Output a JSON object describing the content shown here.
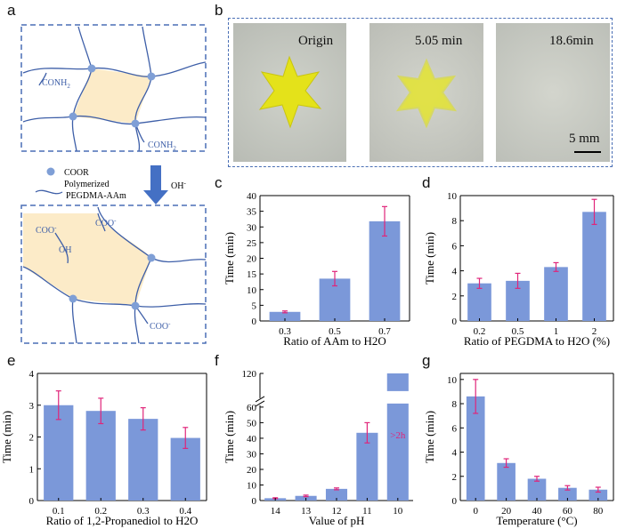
{
  "panels": {
    "a": "a",
    "b": "b",
    "c": "c",
    "d": "d",
    "e": "e",
    "f": "f",
    "g": "g"
  },
  "schematic": {
    "conh2_top": "CONH",
    "conh2_top_sub": "2",
    "conh2_bottom": "CONH",
    "conh2_bottom_sub": "2",
    "legend_coor": "COOR",
    "legend_polymerized": "Polymerized",
    "legend_pegdma": "PEGDMA-AAm",
    "oh_arrow": "OH",
    "oh_arrow_sup": "-",
    "coo_1": "COO",
    "coo_2": "COO",
    "coo_3": "COO",
    "coo_sup": "-",
    "oh_group": "OH",
    "colors": {
      "line": "#3e5fa8",
      "node": "#7f9fd6",
      "fill": "#fcebc8",
      "arrow": "#4470c4"
    }
  },
  "photos": {
    "labels": [
      "Origin",
      "5.05 min",
      "18.6min"
    ],
    "scale_bar": "5 mm"
  },
  "chart_data": [
    {
      "id": "c",
      "type": "bar",
      "categories": [
        "0.3",
        "0.5",
        "0.7"
      ],
      "values": [
        2.9,
        13.5,
        31.8
      ],
      "errors": [
        0.3,
        2.3,
        4.7
      ],
      "xlabel": "Ratio of AAm to H2O",
      "ylabel": "Time (min)",
      "ylim": [
        0,
        40
      ],
      "yticks": [
        "0",
        "5",
        "10",
        "15",
        "20",
        "25",
        "30",
        "35",
        "40"
      ]
    },
    {
      "id": "d",
      "type": "bar",
      "categories": [
        "0.2",
        "0.5",
        "1",
        "2"
      ],
      "values": [
        3.0,
        3.2,
        4.3,
        8.7
      ],
      "errors": [
        0.4,
        0.6,
        0.35,
        1.0
      ],
      "xlabel": "Ratio of PEGDMA to H2O (%)",
      "ylabel": "Time (min)",
      "ylim": [
        0,
        10
      ],
      "yticks": [
        "0",
        "2",
        "4",
        "6",
        "8",
        "10"
      ]
    },
    {
      "id": "e",
      "type": "bar",
      "categories": [
        "0.1",
        "0.2",
        "0.3",
        "0.4"
      ],
      "values": [
        3.0,
        2.82,
        2.57,
        1.97
      ],
      "errors": [
        0.45,
        0.4,
        0.35,
        0.33
      ],
      "xlabel": "Ratio of 1,2-Propanediol to H2O",
      "ylabel": "Time (min)",
      "ylim": [
        0,
        4
      ],
      "yticks": [
        "0",
        "1",
        "2",
        "3",
        "4"
      ]
    },
    {
      "id": "f",
      "type": "bar",
      "categories": [
        "14",
        "13",
        "12",
        "11",
        "10"
      ],
      "values": [
        1.5,
        3.0,
        7.5,
        43.5,
        120
      ],
      "errors": [
        0.3,
        0.5,
        0.6,
        6.5,
        0
      ],
      "xlabel": "Value of pH",
      "ylabel": "Time (min)",
      "ylim": [
        0,
        120
      ],
      "axis_break": [
        70,
        110
      ],
      "yticks": [
        "0",
        "10",
        "20",
        "30",
        "40",
        "50",
        "60",
        "120"
      ],
      "annotation": ">2h"
    },
    {
      "id": "g",
      "type": "bar",
      "categories": [
        "0",
        "20",
        "40",
        "60",
        "80"
      ],
      "values": [
        8.6,
        3.1,
        1.8,
        1.05,
        0.9
      ],
      "errors": [
        1.4,
        0.35,
        0.2,
        0.18,
        0.2
      ],
      "xlabel": "Temperature (°C)",
      "ylabel": "Time (min)",
      "ylim": [
        0,
        10.5
      ],
      "yticks": [
        "0",
        "2",
        "4",
        "6",
        "8",
        "10"
      ]
    }
  ],
  "colors": {
    "bar": "#7b98d9",
    "error": "#e0257a"
  }
}
